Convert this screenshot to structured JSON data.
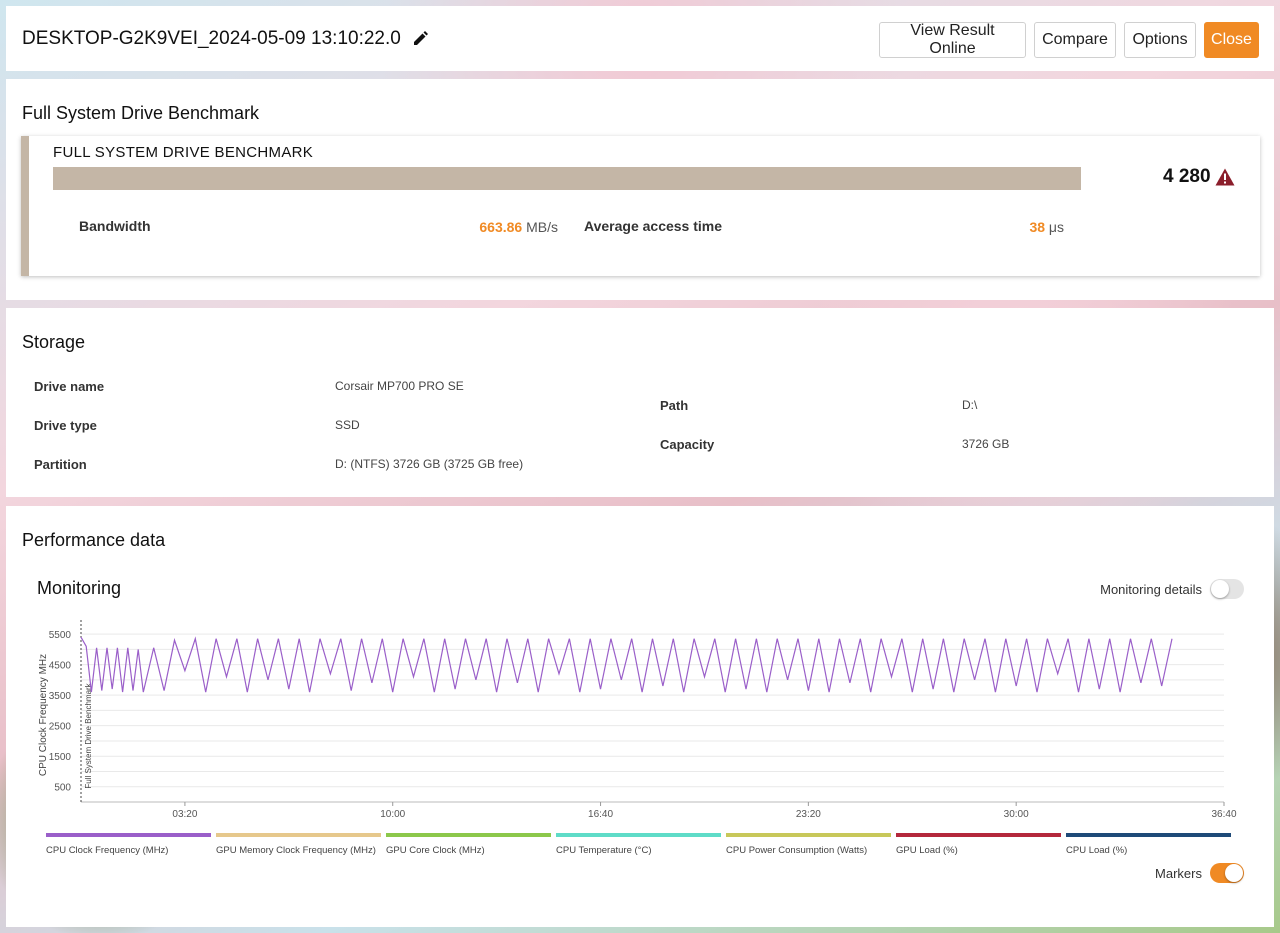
{
  "header": {
    "result_name": "DESKTOP-G2K9VEI_2024-05-09 13:10:22.0",
    "buttons": {
      "view_online": "View Result Online",
      "compare": "Compare",
      "options": "Options",
      "close": "Close"
    },
    "close_color": "#f08a24"
  },
  "benchmark": {
    "section_title": "Full System Drive Benchmark",
    "name": "FULL SYSTEM DRIVE BENCHMARK",
    "score": "4 280",
    "bar_color": "#c4b6a6",
    "bandwidth_label": "Bandwidth",
    "bandwidth_value": "663.86",
    "bandwidth_unit": "MB/s",
    "access_label": "Average access time",
    "access_value": "38",
    "access_unit": "μs"
  },
  "storage": {
    "section_title": "Storage",
    "drive_name_label": "Drive name",
    "drive_name": "Corsair MP700 PRO SE",
    "drive_type_label": "Drive type",
    "drive_type": "SSD",
    "partition_label": "Partition",
    "partition": "D: (NTFS) 3726 GB (3725 GB free)",
    "path_label": "Path",
    "path": "D:\\",
    "capacity_label": "Capacity",
    "capacity": "3726 GB"
  },
  "performance": {
    "section_title": "Performance data",
    "monitoring_title": "Monitoring",
    "monitoring_details_label": "Monitoring details",
    "monitoring_details_on": false,
    "markers_label": "Markers",
    "markers_on": true
  },
  "chart_data": {
    "type": "line",
    "ylabel": "CPU Clock Frequency MHz",
    "marker_label": "Full System Drive Benchmark",
    "y_ticks": [
      500,
      1500,
      2500,
      3500,
      4500,
      5500
    ],
    "ylim": [
      0,
      5700
    ],
    "x_ticks": [
      "03:20",
      "10:00",
      "16:40",
      "23:20",
      "30:00",
      "36:40"
    ],
    "x_tick_seconds": [
      200,
      600,
      1000,
      1400,
      1800,
      2200
    ],
    "xlim_seconds": [
      0,
      2200
    ],
    "grid": true,
    "series": [
      {
        "name": "CPU Clock Frequency (MHz)",
        "color": "#9a5fc9",
        "x_seconds": [
          0,
          10,
          20,
          30,
          40,
          50,
          60,
          70,
          80,
          90,
          100,
          110,
          120,
          140,
          160,
          180,
          200,
          220,
          240,
          260,
          280,
          300,
          320,
          340,
          360,
          380,
          400,
          420,
          440,
          460,
          480,
          500,
          520,
          540,
          560,
          580,
          600,
          620,
          640,
          660,
          680,
          700,
          720,
          740,
          760,
          780,
          800,
          820,
          840,
          860,
          880,
          900,
          920,
          940,
          960,
          980,
          1000,
          1020,
          1040,
          1060,
          1080,
          1100,
          1120,
          1140,
          1160,
          1180,
          1200,
          1220,
          1240,
          1260,
          1280,
          1300,
          1320,
          1340,
          1360,
          1380,
          1400,
          1420,
          1440,
          1460,
          1480,
          1500,
          1520,
          1540,
          1560,
          1580,
          1600,
          1620,
          1640,
          1660,
          1680,
          1700,
          1720,
          1740,
          1760,
          1780,
          1800,
          1820,
          1840,
          1860,
          1880,
          1900,
          1920,
          1940,
          1960,
          1980,
          2000,
          2020,
          2040,
          2060,
          2080,
          2100
        ],
        "values": [
          5400,
          5100,
          3600,
          5050,
          3650,
          5050,
          3700,
          5050,
          3600,
          5050,
          3650,
          5000,
          3600,
          5050,
          3650,
          5300,
          4300,
          5350,
          3600,
          5350,
          4100,
          5350,
          3600,
          5350,
          4000,
          5350,
          3700,
          5350,
          3600,
          5350,
          4200,
          5350,
          3650,
          5350,
          3900,
          5350,
          3600,
          5350,
          4100,
          5350,
          3600,
          5350,
          3700,
          5350,
          4000,
          5350,
          3600,
          5350,
          3900,
          5350,
          3600,
          5350,
          4200,
          5350,
          3600,
          5350,
          3700,
          5350,
          4000,
          5350,
          3600,
          5350,
          3800,
          5350,
          3600,
          5350,
          4100,
          5350,
          3600,
          5350,
          3700,
          5350,
          3600,
          5350,
          4000,
          5350,
          3650,
          5350,
          3600,
          5350,
          3900,
          5350,
          3600,
          5350,
          4100,
          5350,
          3600,
          5350,
          3700,
          5350,
          3600,
          5350,
          4000,
          5350,
          3600,
          5350,
          3800,
          5350,
          3600,
          5350,
          4200,
          5350,
          3600,
          5350,
          3700,
          5350,
          3600,
          5350,
          3900,
          5350,
          3800,
          5350
        ]
      }
    ],
    "legend": [
      {
        "name": "CPU Clock Frequency (MHz)",
        "color": "#9a5fc9"
      },
      {
        "name": "GPU Memory Clock Frequency (MHz)",
        "color": "#e6c88c"
      },
      {
        "name": "GPU Core Clock (MHz)",
        "color": "#8cc84b"
      },
      {
        "name": "CPU Temperature (°C)",
        "color": "#5fdcc8"
      },
      {
        "name": "CPU Power Consumption (Watts)",
        "color": "#c8c85a"
      },
      {
        "name": "GPU Load (%)",
        "color": "#b4283c"
      },
      {
        "name": "CPU Load (%)",
        "color": "#1e4a78"
      }
    ]
  }
}
